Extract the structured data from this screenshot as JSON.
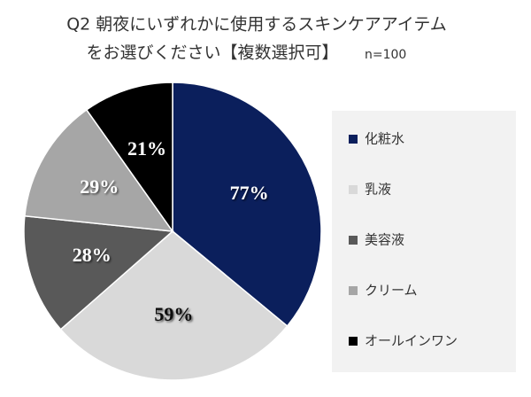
{
  "chart_data": {
    "type": "pie",
    "title": [
      "Q2 朝夜にいずれかに使用するスキンケアアイテム",
      "をお選びください【複数選択可】"
    ],
    "note": "n=100",
    "categories": [
      "化粧水",
      "乳液",
      "美容液",
      "クリーム",
      "オールインワン"
    ],
    "values": [
      77,
      59,
      28,
      29,
      21
    ],
    "value_labels": [
      "77%",
      "59%",
      "28%",
      "29%",
      "21%"
    ],
    "colors": [
      "#0b1f5c",
      "#d9d9d9",
      "#595959",
      "#a6a6a6",
      "#000000"
    ],
    "legend": "right"
  }
}
